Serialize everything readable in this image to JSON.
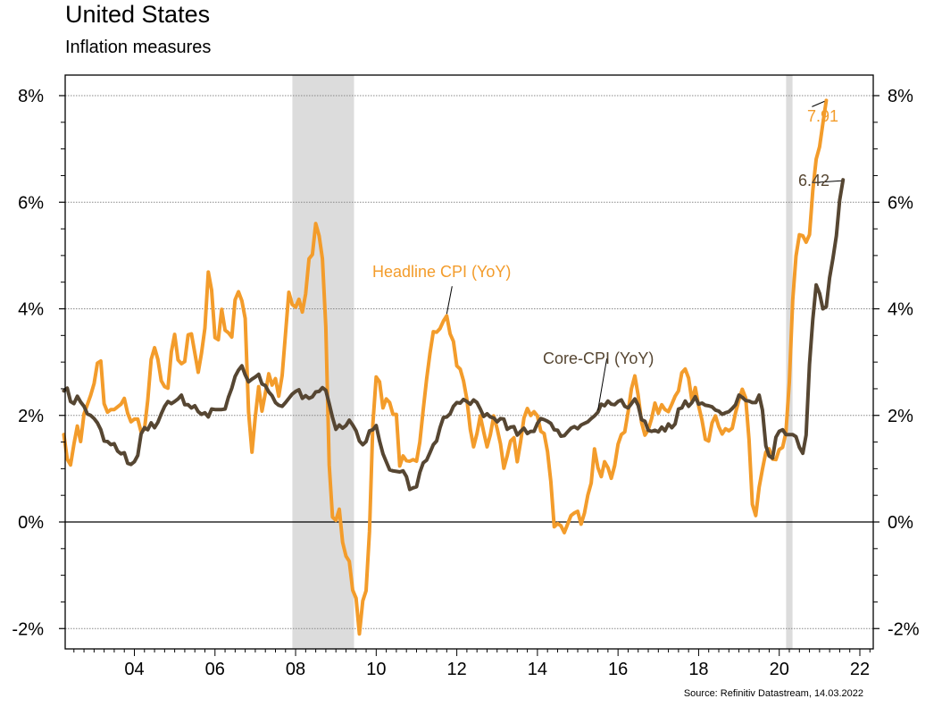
{
  "header": {
    "title": "United States",
    "subtitle": "Inflation measures"
  },
  "footer": {
    "source": "Source: Refinitiv Datastream, 14.03.2022"
  },
  "colors": {
    "headline": "#F39C2B",
    "core": "#564632",
    "recession": "#DCDCDC"
  },
  "chart_data": {
    "type": "line",
    "title": "United States",
    "subtitle": "Inflation measures",
    "xlabel": "",
    "ylabel": "",
    "x_start": 2002.25,
    "x_step_months": 1,
    "xlim": [
      2002.23,
      2022.35
    ],
    "ylim": [
      -2.4,
      8.4
    ],
    "grid": true,
    "x_ticks": [
      {
        "value": 2004,
        "label": "04"
      },
      {
        "value": 2006,
        "label": "06"
      },
      {
        "value": 2008,
        "label": "08"
      },
      {
        "value": 2010,
        "label": "10"
      },
      {
        "value": 2012,
        "label": "12"
      },
      {
        "value": 2014,
        "label": "14"
      },
      {
        "value": 2016,
        "label": "16"
      },
      {
        "value": 2018,
        "label": "18"
      },
      {
        "value": 2020,
        "label": "20"
      },
      {
        "value": 2022,
        "label": "22"
      }
    ],
    "y_ticks": [
      {
        "value": 8,
        "label": "8%"
      },
      {
        "value": 6,
        "label": "6%"
      },
      {
        "value": 4,
        "label": "4%"
      },
      {
        "value": 2,
        "label": "2%"
      },
      {
        "value": 0,
        "label": "0%"
      },
      {
        "value": -2,
        "label": "-2%"
      }
    ],
    "shaded_periods": [
      {
        "name": "recession-2008",
        "start": 2007.92,
        "end": 2009.45
      },
      {
        "name": "recession-2020",
        "start": 2020.17,
        "end": 2020.33
      }
    ],
    "series": [
      {
        "name": "Headline CPI (YoY)",
        "key": "headline",
        "label": "Headline CPI (YoY)",
        "last_value_label": "7.91",
        "values": [
          1.64,
          1.18,
          1.07,
          1.46,
          1.8,
          1.51,
          2.03,
          2.2,
          2.38,
          2.6,
          2.98,
          3.02,
          2.22,
          2.06,
          2.11,
          2.11,
          2.16,
          2.21,
          2.32,
          2.04,
          1.88,
          1.93,
          1.93,
          1.69,
          1.74,
          2.29,
          3.05,
          3.27,
          3.05,
          2.65,
          2.54,
          2.51,
          3.19,
          3.52,
          3.04,
          2.97,
          3.01,
          3.51,
          3.53,
          3.17,
          2.81,
          3.17,
          3.64,
          4.69,
          4.35,
          3.46,
          3.42,
          3.99,
          3.6,
          3.55,
          3.47,
          4.17,
          4.32,
          4.15,
          3.82,
          2.06,
          1.31,
          1.97,
          2.54,
          2.08,
          2.42,
          2.78,
          2.57,
          2.69,
          2.36,
          2.75,
          3.54,
          4.31,
          4.08,
          4.03,
          4.18,
          3.94,
          4.28,
          4.94,
          5.02,
          5.6,
          5.37,
          4.94,
          3.66,
          1.07,
          0.09,
          0.03,
          0.24,
          -0.38,
          -0.64,
          -0.74,
          -1.28,
          -1.43,
          -2.1,
          -1.48,
          -1.29,
          -0.18,
          1.84,
          2.72,
          2.63,
          2.14,
          2.31,
          2.24,
          2.02,
          2.02,
          1.05,
          1.24,
          1.15,
          1.14,
          1.17,
          1.14,
          1.5,
          2.11,
          2.68,
          3.16,
          3.57,
          3.56,
          3.63,
          3.77,
          3.87,
          3.53,
          3.39,
          2.93,
          2.87,
          2.65,
          2.3,
          1.74,
          1.41,
          1.66,
          1.99,
          1.69,
          1.41,
          1.64,
          1.99,
          1.75,
          1.47,
          1.01,
          1.24,
          1.52,
          1.58,
          1.13,
          1.51,
          1.95,
          2.13,
          2.0,
          2.07,
          1.99,
          1.7,
          1.66,
          1.32,
          0.76,
          -0.09,
          -0.03,
          -0.07,
          -0.2,
          -0.04,
          0.12,
          0.17,
          0.2,
          -0.04,
          0.17,
          0.5,
          0.73,
          1.37,
          1.02,
          0.85,
          1.13,
          1.02,
          0.82,
          1.06,
          1.46,
          1.64,
          1.69,
          2.07,
          2.5,
          2.74,
          2.38,
          1.87,
          1.63,
          1.73,
          1.94,
          2.23,
          2.04,
          2.2,
          2.11,
          2.07,
          2.21,
          2.36,
          2.46,
          2.8,
          2.87,
          2.7,
          2.28,
          2.52,
          2.18,
          1.91,
          1.55,
          1.52,
          1.86,
          1.99,
          1.79,
          1.65,
          1.75,
          1.71,
          1.76,
          2.05,
          2.29,
          2.49,
          2.33,
          1.54,
          0.33,
          0.12,
          0.65,
          0.99,
          1.31,
          1.37,
          1.18,
          1.17,
          1.36,
          1.4,
          1.68,
          2.62,
          4.16,
          4.99,
          5.39,
          5.37,
          5.25,
          5.39,
          6.22,
          6.81,
          7.04,
          7.48,
          7.91
        ]
      },
      {
        "name": "Core-CPI (YoY)",
        "key": "core",
        "label": "Core-CPI (YoY)",
        "last_value_label": "6.42",
        "values": [
          2.46,
          2.51,
          2.26,
          2.22,
          2.36,
          2.25,
          2.17,
          2.03,
          2.0,
          1.94,
          1.86,
          1.73,
          1.52,
          1.51,
          1.45,
          1.47,
          1.33,
          1.28,
          1.3,
          1.1,
          1.08,
          1.13,
          1.25,
          1.65,
          1.77,
          1.73,
          1.86,
          1.77,
          1.87,
          2.03,
          2.17,
          2.26,
          2.22,
          2.26,
          2.31,
          2.38,
          2.2,
          2.2,
          2.14,
          2.18,
          2.07,
          2.02,
          2.05,
          1.97,
          2.12,
          2.11,
          2.11,
          2.11,
          2.12,
          2.34,
          2.51,
          2.73,
          2.85,
          2.93,
          2.76,
          2.63,
          2.68,
          2.72,
          2.77,
          2.59,
          2.56,
          2.44,
          2.37,
          2.24,
          2.19,
          2.17,
          2.24,
          2.32,
          2.4,
          2.45,
          2.48,
          2.32,
          2.37,
          2.32,
          2.35,
          2.44,
          2.45,
          2.52,
          2.47,
          2.22,
          1.96,
          1.74,
          1.82,
          1.76,
          1.81,
          1.91,
          1.82,
          1.71,
          1.52,
          1.45,
          1.51,
          1.71,
          1.73,
          1.81,
          1.52,
          1.28,
          1.13,
          0.98,
          0.96,
          0.95,
          0.94,
          0.96,
          0.85,
          0.61,
          0.64,
          0.66,
          0.93,
          1.11,
          1.16,
          1.3,
          1.45,
          1.52,
          1.77,
          1.96,
          1.97,
          2.03,
          2.17,
          2.24,
          2.23,
          2.3,
          2.26,
          2.21,
          2.29,
          2.24,
          2.12,
          1.98,
          2.03,
          1.97,
          1.95,
          1.88,
          1.94,
          1.93,
          1.74,
          1.78,
          1.79,
          1.63,
          1.7,
          1.76,
          1.66,
          1.7,
          1.7,
          1.85,
          1.94,
          1.92,
          1.89,
          1.85,
          1.73,
          1.72,
          1.61,
          1.62,
          1.69,
          1.76,
          1.79,
          1.75,
          1.82,
          1.85,
          1.88,
          1.94,
          1.99,
          2.06,
          2.21,
          2.18,
          2.27,
          2.21,
          2.2,
          2.26,
          2.29,
          2.17,
          2.14,
          2.22,
          2.31,
          2.19,
          1.92,
          1.89,
          1.72,
          1.7,
          1.72,
          1.69,
          1.78,
          1.71,
          1.84,
          1.77,
          1.84,
          2.12,
          2.14,
          2.27,
          2.17,
          2.24,
          2.35,
          2.21,
          2.23,
          2.19,
          2.18,
          2.16,
          2.1,
          2.08,
          2.02,
          2.05,
          2.07,
          2.13,
          2.2,
          2.38,
          2.34,
          2.28,
          2.27,
          2.24,
          2.24,
          2.38,
          2.1,
          1.43,
          1.24,
          1.2,
          1.59,
          1.7,
          1.73,
          1.64,
          1.64,
          1.64,
          1.6,
          1.4,
          1.29,
          1.63,
          2.96,
          3.8,
          4.45,
          4.29,
          4.0,
          4.04,
          4.58,
          4.95,
          5.37,
          6.04,
          6.42
        ]
      }
    ],
    "annotations": [
      {
        "text": "Headline CPI (YoY)",
        "series": "headline",
        "anchor_x": 2011.75
      },
      {
        "text": "Core-CPI (YoY)",
        "series": "core",
        "anchor_x": 2015.5
      },
      {
        "text": "7.91",
        "series": "headline",
        "end_label": true
      },
      {
        "text": "6.42",
        "series": "core",
        "end_label": true
      }
    ]
  }
}
